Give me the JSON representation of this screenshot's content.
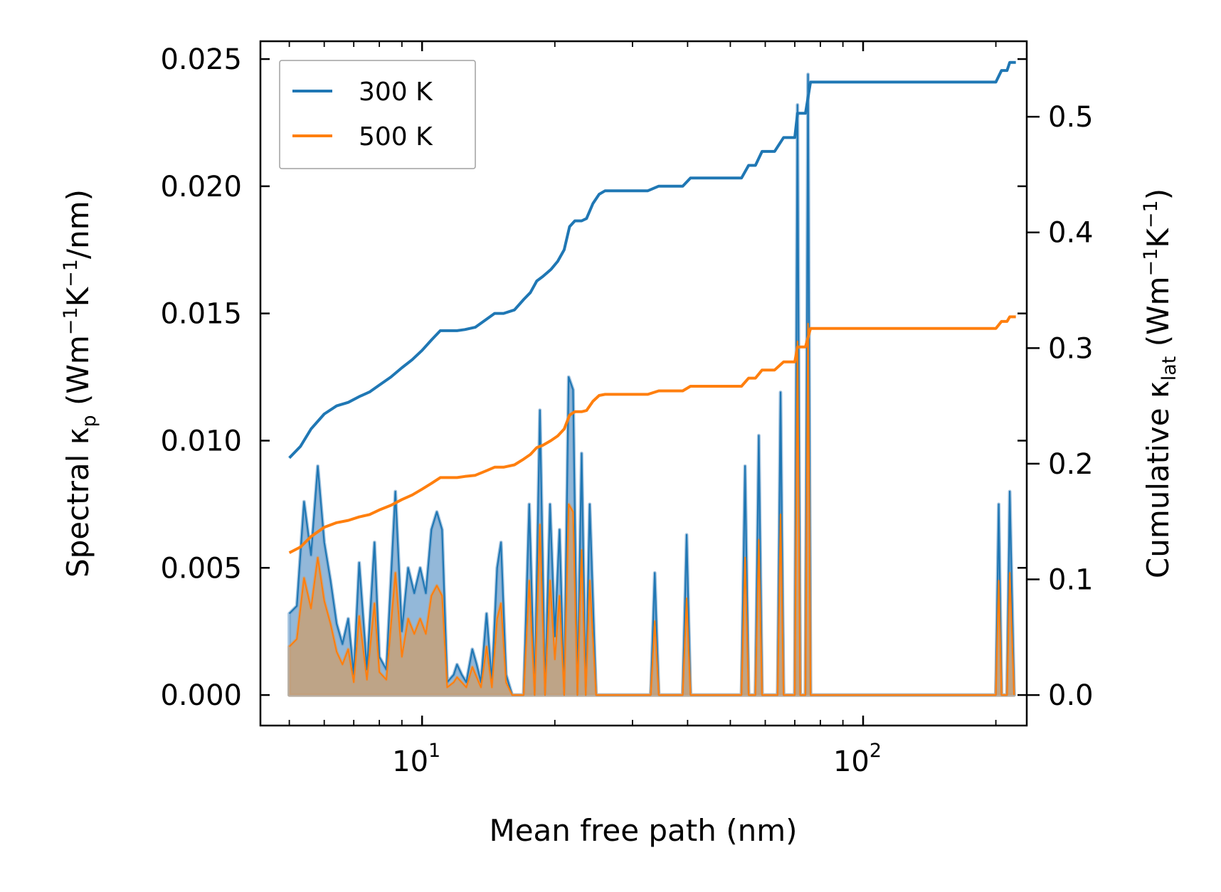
{
  "chart_data": {
    "type": "line",
    "xscale": "log",
    "xlabel": "Mean free path (nm)",
    "ylabel_left": {
      "prefix": "Spectral κ",
      "sub": "p",
      "unit_open": " (Wm",
      "sup1": "−1",
      "unit_mid": "K",
      "sup2": "−1",
      "unit_close": "/nm)"
    },
    "ylabel_right": {
      "prefix": "Cumulative κ",
      "sub": "lat",
      "unit_open": " (Wm",
      "sup1": "−1",
      "unit_mid": "K",
      "sup2": "−1",
      "unit_close": ")"
    },
    "xlim": [
      4.3,
      235
    ],
    "ylim_left": [
      -0.0012,
      0.0257
    ],
    "ylim_right": [
      -0.0264,
      0.5653
    ],
    "xticks": [
      {
        "value": 10,
        "base": "10",
        "exp": "1"
      },
      {
        "value": 100,
        "base": "10",
        "exp": "2"
      }
    ],
    "yticks_left": [
      {
        "value": 0.0,
        "label": "0.000"
      },
      {
        "value": 0.005,
        "label": "0.005"
      },
      {
        "value": 0.01,
        "label": "0.010"
      },
      {
        "value": 0.015,
        "label": "0.015"
      },
      {
        "value": 0.02,
        "label": "0.020"
      },
      {
        "value": 0.025,
        "label": "0.025"
      }
    ],
    "yticks_right": [
      {
        "value": 0.0,
        "label": "0.0"
      },
      {
        "value": 0.1,
        "label": "0.1"
      },
      {
        "value": 0.2,
        "label": "0.2"
      },
      {
        "value": 0.3,
        "label": "0.3"
      },
      {
        "value": 0.4,
        "label": "0.4"
      },
      {
        "value": 0.5,
        "label": "0.5"
      }
    ],
    "legend": {
      "position": "upper-left",
      "entries": [
        "300 K",
        "500 K"
      ]
    },
    "colors": {
      "s300": "#1f77b4",
      "s500": "#ff7f0e",
      "fill300": "#6fa0cc",
      "fill500": "#c6a078"
    },
    "spectral": [
      {
        "name": "300 K",
        "points": [
          [
            5.0,
            0.0032
          ],
          [
            5.2,
            0.0035
          ],
          [
            5.4,
            0.0076
          ],
          [
            5.6,
            0.0055
          ],
          [
            5.8,
            0.009
          ],
          [
            6.0,
            0.006
          ],
          [
            6.2,
            0.0045
          ],
          [
            6.4,
            0.0028
          ],
          [
            6.6,
            0.002
          ],
          [
            6.8,
            0.003
          ],
          [
            7.0,
            0.0008
          ],
          [
            7.2,
            0.0052
          ],
          [
            7.5,
            0.001
          ],
          [
            7.8,
            0.006
          ],
          [
            8.0,
            0.0015
          ],
          [
            8.3,
            0.001
          ],
          [
            8.7,
            0.008
          ],
          [
            9.0,
            0.0025
          ],
          [
            9.3,
            0.005
          ],
          [
            9.6,
            0.004
          ],
          [
            9.9,
            0.005
          ],
          [
            10.2,
            0.004
          ],
          [
            10.5,
            0.0065
          ],
          [
            10.8,
            0.0072
          ],
          [
            11.1,
            0.0065
          ],
          [
            11.4,
            0.0005
          ],
          [
            11.8,
            0.0008
          ],
          [
            12.0,
            0.0012
          ],
          [
            12.3,
            0.0008
          ],
          [
            12.6,
            0.0005
          ],
          [
            13.0,
            0.0018
          ],
          [
            13.3,
            0.0012
          ],
          [
            13.6,
            0.0005
          ],
          [
            14.0,
            0.0032
          ],
          [
            14.4,
            0.0005
          ],
          [
            14.8,
            0.005
          ],
          [
            15.1,
            0.006
          ],
          [
            15.5,
            0.0008
          ],
          [
            16.0,
            0.0
          ],
          [
            17.0,
            0.0
          ],
          [
            17.5,
            0.0075
          ],
          [
            18.0,
            0.0
          ],
          [
            18.5,
            0.0112
          ],
          [
            19.0,
            0.0
          ],
          [
            19.5,
            0.0075
          ],
          [
            20.0,
            0.0023
          ],
          [
            20.5,
            0.0065
          ],
          [
            21.0,
            0.0
          ],
          [
            21.5,
            0.0125
          ],
          [
            22.0,
            0.012
          ],
          [
            22.5,
            0.0
          ],
          [
            23.0,
            0.0095
          ],
          [
            23.5,
            0.0
          ],
          [
            24.0,
            0.0075
          ],
          [
            24.8,
            0.0
          ],
          [
            25.5,
            0.0
          ],
          [
            26.0,
            0.0
          ],
          [
            27.0,
            0.0
          ],
          [
            33.0,
            0.0
          ],
          [
            33.7,
            0.0048
          ],
          [
            34.4,
            0.0
          ],
          [
            39.0,
            0.0
          ],
          [
            39.8,
            0.0063
          ],
          [
            40.6,
            0.0
          ],
          [
            53.0,
            0.0
          ],
          [
            54.0,
            0.009
          ],
          [
            55.0,
            0.0
          ],
          [
            57.0,
            0.0
          ],
          [
            58.0,
            0.0102
          ],
          [
            59.0,
            0.0
          ],
          [
            64.0,
            0.0
          ],
          [
            65.0,
            0.0119
          ],
          [
            66.0,
            0.0
          ],
          [
            70.0,
            0.0
          ],
          [
            71.0,
            0.0232
          ],
          [
            72.0,
            0.0
          ],
          [
            74.0,
            0.0
          ],
          [
            75.0,
            0.0244
          ],
          [
            76.0,
            0.0
          ],
          [
            200.0,
            0.0
          ],
          [
            203.0,
            0.0075
          ],
          [
            206.0,
            0.0
          ],
          [
            212.0,
            0.0
          ],
          [
            215.0,
            0.008
          ],
          [
            220.0,
            0.0
          ]
        ]
      },
      {
        "name": "500 K",
        "points": [
          [
            5.0,
            0.0019
          ],
          [
            5.2,
            0.0022
          ],
          [
            5.4,
            0.0046
          ],
          [
            5.6,
            0.0034
          ],
          [
            5.8,
            0.0054
          ],
          [
            6.0,
            0.0037
          ],
          [
            6.2,
            0.0028
          ],
          [
            6.4,
            0.0017
          ],
          [
            6.6,
            0.0012
          ],
          [
            6.8,
            0.0018
          ],
          [
            7.0,
            0.0005
          ],
          [
            7.2,
            0.0031
          ],
          [
            7.5,
            0.0006
          ],
          [
            7.8,
            0.0036
          ],
          [
            8.0,
            0.0009
          ],
          [
            8.3,
            0.0006
          ],
          [
            8.7,
            0.0048
          ],
          [
            9.0,
            0.0015
          ],
          [
            9.3,
            0.003
          ],
          [
            9.6,
            0.0024
          ],
          [
            9.9,
            0.003
          ],
          [
            10.2,
            0.0024
          ],
          [
            10.5,
            0.0039
          ],
          [
            10.8,
            0.0043
          ],
          [
            11.1,
            0.0039
          ],
          [
            11.4,
            0.0003
          ],
          [
            11.8,
            0.0005
          ],
          [
            12.0,
            0.0007
          ],
          [
            12.3,
            0.0005
          ],
          [
            12.6,
            0.0003
          ],
          [
            13.0,
            0.0011
          ],
          [
            13.3,
            0.0007
          ],
          [
            13.6,
            0.0003
          ],
          [
            14.0,
            0.0019
          ],
          [
            14.4,
            0.0003
          ],
          [
            14.8,
            0.003
          ],
          [
            15.1,
            0.0036
          ],
          [
            15.5,
            0.0005
          ],
          [
            16.0,
            0.0
          ],
          [
            17.0,
            0.0
          ],
          [
            17.5,
            0.0045
          ],
          [
            18.0,
            0.0
          ],
          [
            18.5,
            0.0067
          ],
          [
            19.0,
            0.0
          ],
          [
            19.5,
            0.0045
          ],
          [
            20.0,
            0.0014
          ],
          [
            20.5,
            0.0039
          ],
          [
            21.0,
            0.0
          ],
          [
            21.5,
            0.0075
          ],
          [
            22.0,
            0.0072
          ],
          [
            22.5,
            0.0
          ],
          [
            23.0,
            0.0057
          ],
          [
            23.5,
            0.0
          ],
          [
            24.0,
            0.0045
          ],
          [
            24.8,
            0.0
          ],
          [
            25.5,
            0.0
          ],
          [
            26.0,
            0.0
          ],
          [
            27.0,
            0.0
          ],
          [
            33.0,
            0.0
          ],
          [
            33.7,
            0.0029
          ],
          [
            34.4,
            0.0
          ],
          [
            39.0,
            0.0
          ],
          [
            39.8,
            0.0038
          ],
          [
            40.6,
            0.0
          ],
          [
            53.0,
            0.0
          ],
          [
            54.0,
            0.0054
          ],
          [
            55.0,
            0.0
          ],
          [
            57.0,
            0.0
          ],
          [
            58.0,
            0.0061
          ],
          [
            59.0,
            0.0
          ],
          [
            64.0,
            0.0
          ],
          [
            65.0,
            0.0071
          ],
          [
            66.0,
            0.0
          ],
          [
            70.0,
            0.0
          ],
          [
            71.0,
            0.0139
          ],
          [
            72.0,
            0.0
          ],
          [
            74.0,
            0.0
          ],
          [
            75.0,
            0.0146
          ],
          [
            76.0,
            0.0
          ],
          [
            200.0,
            0.0
          ],
          [
            203.0,
            0.0045
          ],
          [
            206.0,
            0.0
          ],
          [
            212.0,
            0.0
          ],
          [
            215.0,
            0.0048
          ],
          [
            220.0,
            0.0
          ]
        ]
      }
    ],
    "cumulative": [
      {
        "name": "300 K",
        "points": [
          [
            5.0,
            0.205
          ],
          [
            5.3,
            0.215
          ],
          [
            5.6,
            0.23
          ],
          [
            6.0,
            0.243
          ],
          [
            6.4,
            0.25
          ],
          [
            6.8,
            0.253
          ],
          [
            7.2,
            0.258
          ],
          [
            7.6,
            0.262
          ],
          [
            8.0,
            0.268
          ],
          [
            8.5,
            0.275
          ],
          [
            9.0,
            0.283
          ],
          [
            9.5,
            0.29
          ],
          [
            10.0,
            0.298
          ],
          [
            10.5,
            0.307
          ],
          [
            11.0,
            0.315
          ],
          [
            11.4,
            0.315
          ],
          [
            12.0,
            0.315
          ],
          [
            12.5,
            0.316
          ],
          [
            13.2,
            0.318
          ],
          [
            14.0,
            0.325
          ],
          [
            14.6,
            0.33
          ],
          [
            15.3,
            0.33
          ],
          [
            16.2,
            0.333
          ],
          [
            17.0,
            0.342
          ],
          [
            17.6,
            0.348
          ],
          [
            18.2,
            0.358
          ],
          [
            18.8,
            0.362
          ],
          [
            19.6,
            0.368
          ],
          [
            20.3,
            0.375
          ],
          [
            21.0,
            0.385
          ],
          [
            21.6,
            0.405
          ],
          [
            22.2,
            0.41
          ],
          [
            23.0,
            0.41
          ],
          [
            23.6,
            0.412
          ],
          [
            24.4,
            0.425
          ],
          [
            25.2,
            0.433
          ],
          [
            26.0,
            0.436
          ],
          [
            28.0,
            0.436
          ],
          [
            32.5,
            0.436
          ],
          [
            34.4,
            0.44
          ],
          [
            39.0,
            0.44
          ],
          [
            40.6,
            0.447
          ],
          [
            53.0,
            0.447
          ],
          [
            55.0,
            0.458
          ],
          [
            57.0,
            0.458
          ],
          [
            59.0,
            0.47
          ],
          [
            63.0,
            0.47
          ],
          [
            66.0,
            0.482
          ],
          [
            70.0,
            0.482
          ],
          [
            71.0,
            0.503
          ],
          [
            74.0,
            0.503
          ],
          [
            76.0,
            0.53
          ],
          [
            200.0,
            0.53
          ],
          [
            206.0,
            0.54
          ],
          [
            212.0,
            0.54
          ],
          [
            215.0,
            0.547
          ],
          [
            222.0,
            0.547
          ]
        ]
      },
      {
        "name": "500 K",
        "points": [
          [
            5.0,
            0.123
          ],
          [
            5.3,
            0.128
          ],
          [
            5.6,
            0.137
          ],
          [
            6.0,
            0.145
          ],
          [
            6.4,
            0.149
          ],
          [
            6.8,
            0.151
          ],
          [
            7.2,
            0.154
          ],
          [
            7.6,
            0.156
          ],
          [
            8.0,
            0.16
          ],
          [
            8.5,
            0.164
          ],
          [
            9.0,
            0.169
          ],
          [
            9.5,
            0.173
          ],
          [
            10.0,
            0.178
          ],
          [
            10.5,
            0.183
          ],
          [
            11.0,
            0.188
          ],
          [
            11.4,
            0.188
          ],
          [
            12.0,
            0.188
          ],
          [
            12.5,
            0.189
          ],
          [
            13.2,
            0.19
          ],
          [
            14.0,
            0.194
          ],
          [
            14.6,
            0.197
          ],
          [
            15.3,
            0.197
          ],
          [
            16.2,
            0.199
          ],
          [
            17.0,
            0.204
          ],
          [
            17.6,
            0.208
          ],
          [
            18.2,
            0.214
          ],
          [
            18.8,
            0.216
          ],
          [
            19.6,
            0.22
          ],
          [
            20.3,
            0.224
          ],
          [
            21.0,
            0.23
          ],
          [
            21.6,
            0.242
          ],
          [
            22.2,
            0.245
          ],
          [
            23.0,
            0.245
          ],
          [
            23.6,
            0.246
          ],
          [
            24.4,
            0.254
          ],
          [
            25.2,
            0.259
          ],
          [
            26.0,
            0.26
          ],
          [
            28.0,
            0.26
          ],
          [
            32.5,
            0.26
          ],
          [
            34.4,
            0.263
          ],
          [
            39.0,
            0.263
          ],
          [
            40.6,
            0.267
          ],
          [
            53.0,
            0.267
          ],
          [
            55.0,
            0.274
          ],
          [
            57.0,
            0.274
          ],
          [
            59.0,
            0.281
          ],
          [
            63.0,
            0.281
          ],
          [
            66.0,
            0.288
          ],
          [
            70.0,
            0.288
          ],
          [
            71.0,
            0.301
          ],
          [
            74.0,
            0.301
          ],
          [
            76.0,
            0.317
          ],
          [
            200.0,
            0.317
          ],
          [
            206.0,
            0.323
          ],
          [
            212.0,
            0.323
          ],
          [
            215.0,
            0.327
          ],
          [
            222.0,
            0.327
          ]
        ]
      }
    ]
  }
}
